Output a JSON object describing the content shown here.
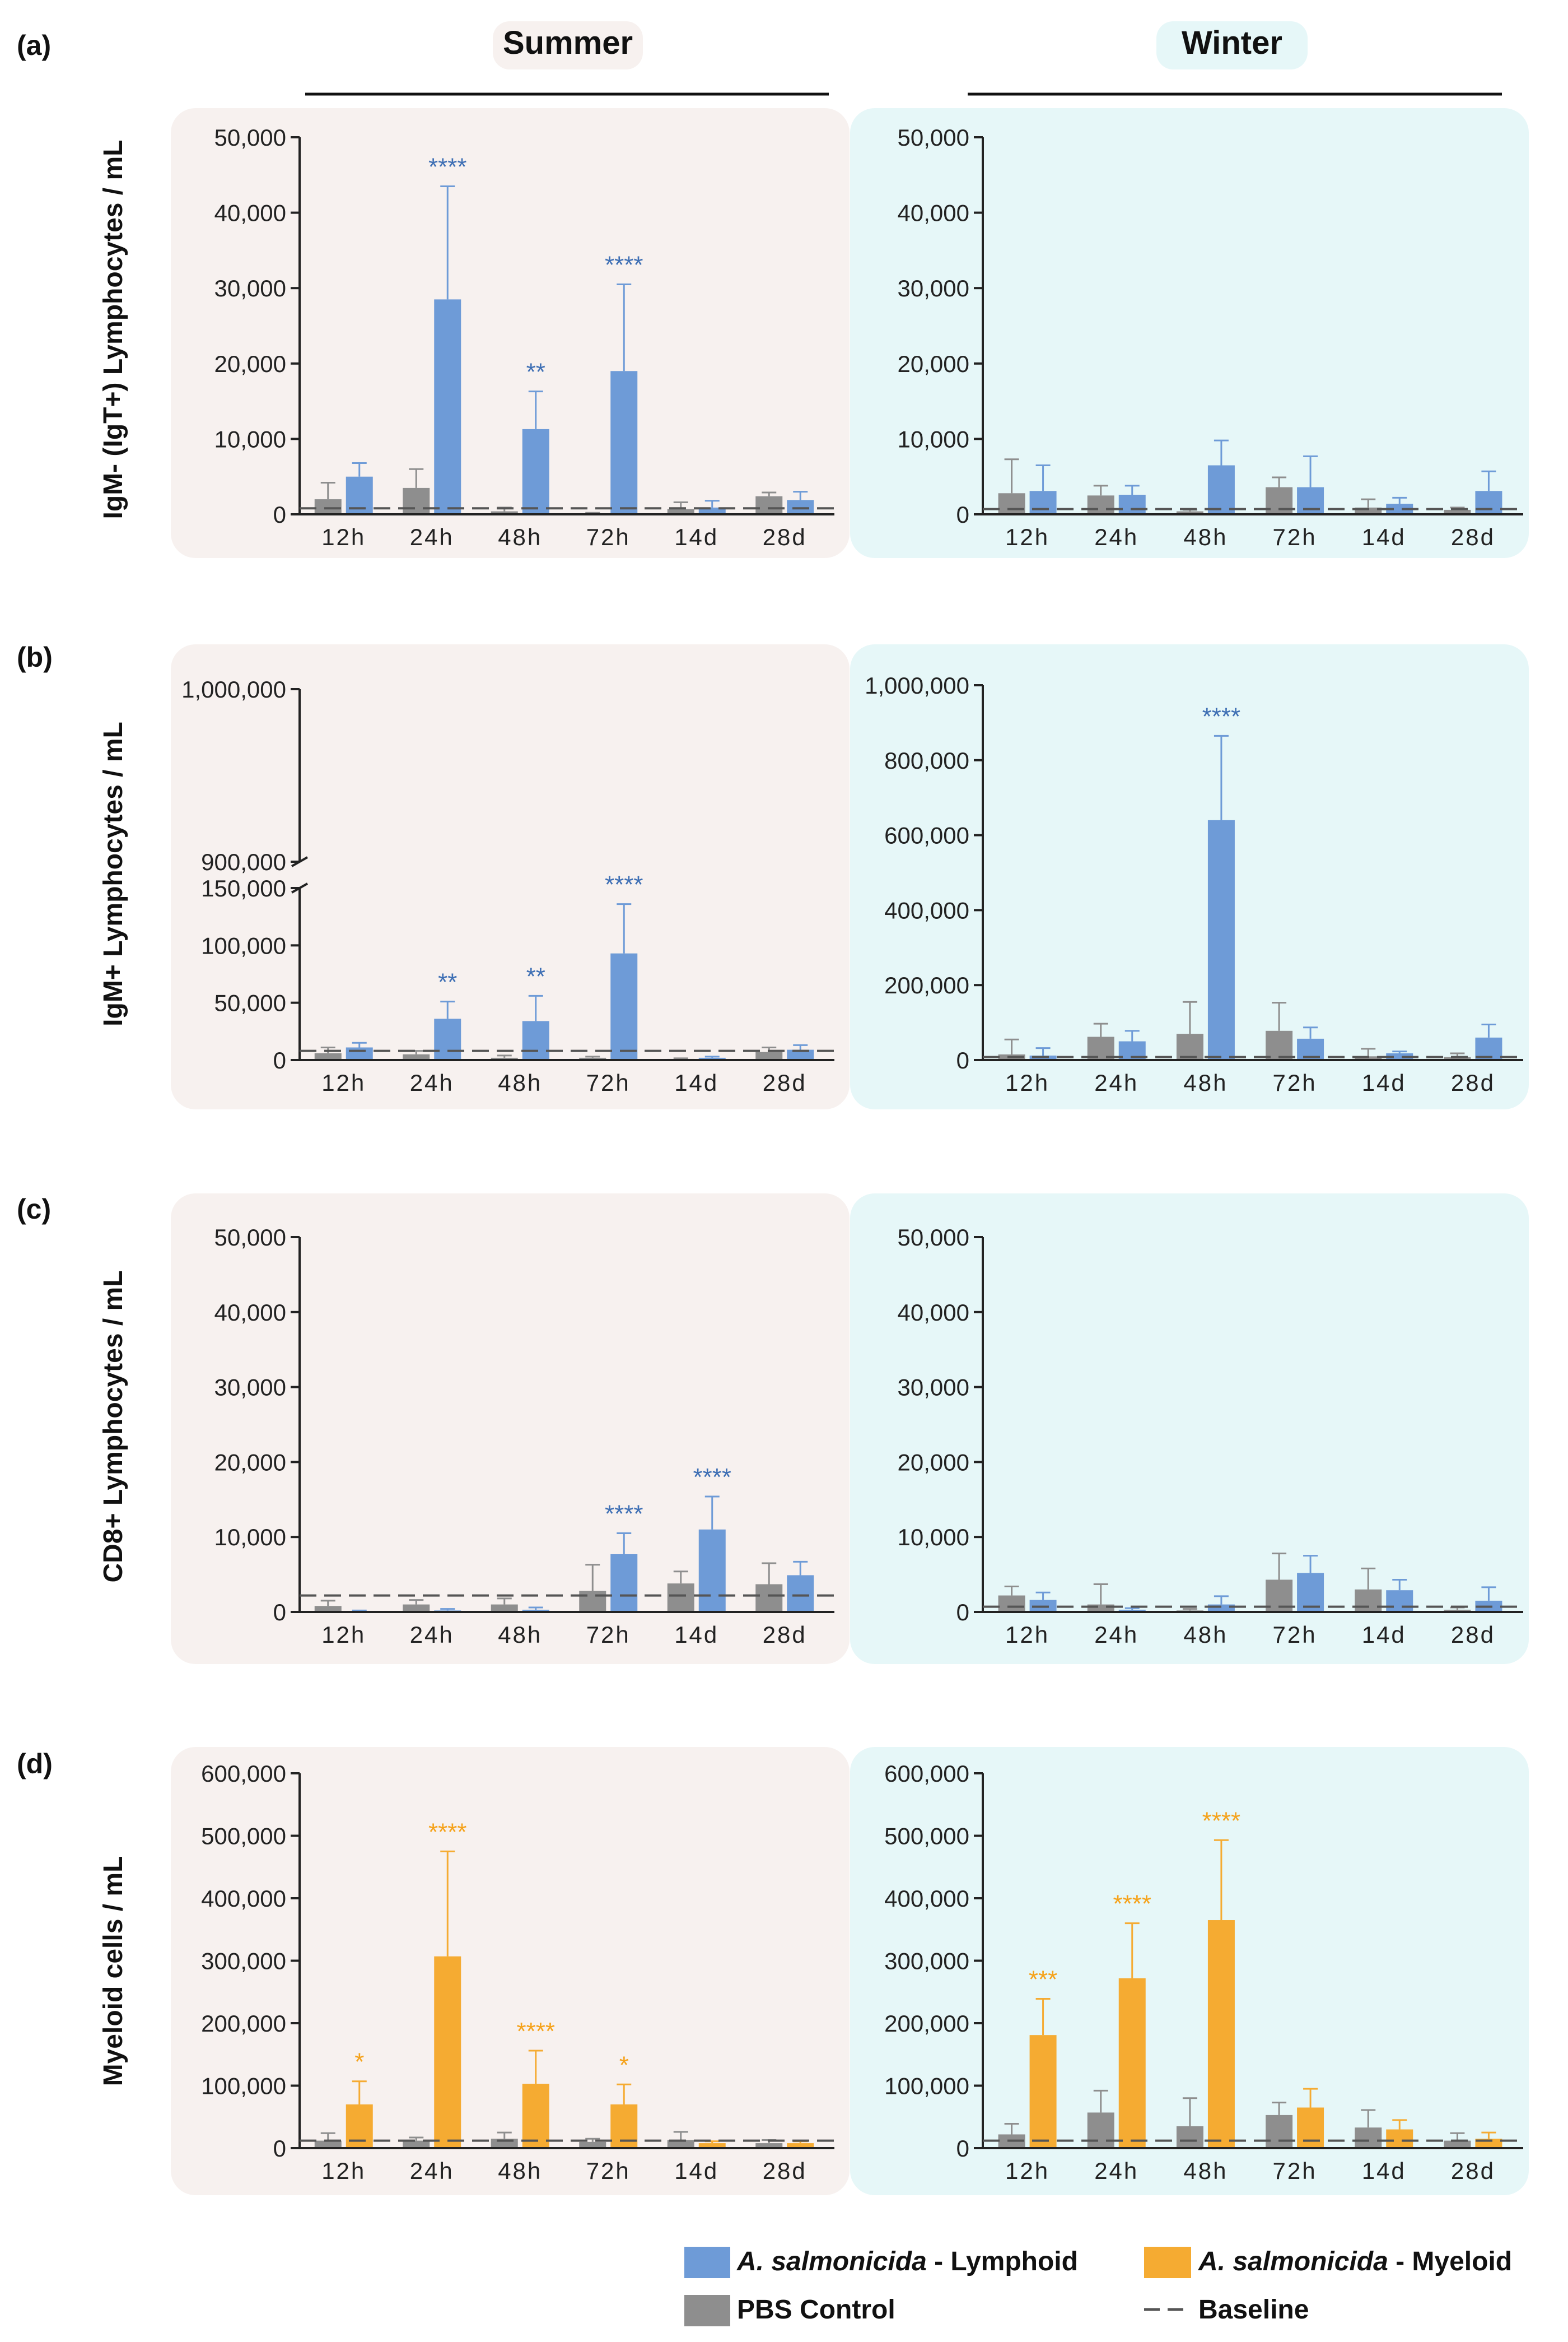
{
  "figure": {
    "season_labels": {
      "summer": "Summer",
      "winter": "Winter"
    },
    "panel_letters": [
      "(a)",
      "(b)",
      "(c)",
      "(d)"
    ],
    "colors": {
      "summer_bg": "#f7f1ef",
      "winter_bg": "#e6f7f8",
      "lymphoid": "#6e9bd7",
      "myeloid": "#f5ab32",
      "control": "#8e8e8e",
      "star_lymphoid": "#3e6fb4",
      "star_myeloid": "#f5a21a",
      "axis": "#222222",
      "baseline": "#555555"
    },
    "legend": {
      "lymphoid_italic": "A. salmonicida",
      "lymphoid_rest": " - Lymphoid",
      "myeloid_italic": "A. salmonicida",
      "myeloid_rest": " - Myeloid",
      "control": "PBS Control",
      "baseline": "Baseline"
    }
  },
  "chart_data": [
    {
      "id": "a-summer",
      "type": "bar",
      "panel": "(a)",
      "season": "Summer",
      "ylabel": "IgM- (IgT+) Lymphocytes / mL",
      "categories": [
        "12h",
        "24h",
        "48h",
        "72h",
        "14d",
        "28d"
      ],
      "ylim": [
        0,
        50000
      ],
      "ticks": [
        0,
        10000,
        20000,
        30000,
        40000,
        50000
      ],
      "tick_labels": [
        "0",
        "10,000",
        "20,000",
        "30,000",
        "40,000",
        "50,000"
      ],
      "baseline": 800,
      "series": [
        {
          "name": "PBS Control",
          "values": [
            2000,
            3500,
            400,
            100,
            700,
            2400
          ],
          "errors": [
            2200,
            2500,
            500,
            100,
            900,
            500
          ]
        },
        {
          "name": "A. salmonicida - Lymphoid",
          "values": [
            5000,
            28500,
            11300,
            19000,
            900,
            1900
          ],
          "errors": [
            1800,
            15000,
            5000,
            11500,
            900,
            1100
          ]
        }
      ],
      "significance": [
        "",
        "****",
        "**",
        "****",
        "",
        ""
      ]
    },
    {
      "id": "a-winter",
      "type": "bar",
      "panel": "(a)",
      "season": "Winter",
      "ylabel": "IgM- (IgT+) Lymphocytes / mL",
      "categories": [
        "12h",
        "24h",
        "48h",
        "72h",
        "14d",
        "28d"
      ],
      "ylim": [
        0,
        50000
      ],
      "ticks": [
        0,
        10000,
        20000,
        30000,
        40000,
        50000
      ],
      "tick_labels": [
        "0",
        "10,000",
        "20,000",
        "30,000",
        "40,000",
        "50,000"
      ],
      "baseline": 700,
      "series": [
        {
          "name": "PBS Control",
          "values": [
            2800,
            2500,
            400,
            3600,
            900,
            600
          ],
          "errors": [
            4500,
            1300,
            200,
            1300,
            1100,
            300
          ]
        },
        {
          "name": "A. salmonicida - Lymphoid",
          "values": [
            3100,
            2600,
            6500,
            3600,
            1400,
            3100
          ],
          "errors": [
            3400,
            1200,
            3300,
            4100,
            800,
            2600
          ]
        }
      ],
      "significance": [
        "",
        "",
        "",
        "",
        "",
        ""
      ]
    },
    {
      "id": "b-summer",
      "type": "bar",
      "panel": "(b)",
      "season": "Summer",
      "ylabel": "IgM+ Lymphocytes / mL",
      "categories": [
        "12h",
        "24h",
        "48h",
        "72h",
        "14d",
        "28d"
      ],
      "ylim": [
        0,
        150000
      ],
      "axis_break": {
        "lower_max": 150000,
        "upper_min": 900000,
        "upper_max": 1000000
      },
      "ticks": [
        0,
        50000,
        100000,
        150000
      ],
      "tick_labels": [
        "0",
        "50,000",
        "100,000",
        "150,000"
      ],
      "upper_tick_labels": [
        "900,000",
        "1,000,000"
      ],
      "baseline": 8000,
      "series": [
        {
          "name": "PBS Control",
          "values": [
            6000,
            5000,
            2000,
            2000,
            1000,
            7000
          ],
          "errors": [
            5000,
            3000,
            2000,
            1000,
            500,
            4000
          ]
        },
        {
          "name": "A. salmonicida - Lymphoid",
          "values": [
            11000,
            36000,
            34000,
            93000,
            2000,
            9000
          ],
          "errors": [
            4000,
            15000,
            22000,
            43000,
            1000,
            4000
          ]
        }
      ],
      "significance": [
        "",
        "**",
        "**",
        "****",
        "",
        ""
      ]
    },
    {
      "id": "b-winter",
      "type": "bar",
      "panel": "(b)",
      "season": "Winter",
      "ylabel": "IgM+ Lymphocytes / mL",
      "categories": [
        "12h",
        "24h",
        "48h",
        "72h",
        "14d",
        "28d"
      ],
      "ylim": [
        0,
        1000000
      ],
      "ticks": [
        0,
        200000,
        400000,
        600000,
        800000,
        1000000
      ],
      "tick_labels": [
        "0",
        "200,000",
        "400,000",
        "600,000",
        "800,000",
        "1,000,000"
      ],
      "baseline": 8000,
      "series": [
        {
          "name": "PBS Control",
          "values": [
            15000,
            62000,
            70000,
            78000,
            10000,
            8000
          ],
          "errors": [
            40000,
            35000,
            85000,
            75000,
            20000,
            10000
          ]
        },
        {
          "name": "A. salmonicida - Lymphoid",
          "values": [
            12000,
            50000,
            640000,
            57000,
            18000,
            60000
          ],
          "errors": [
            20000,
            28000,
            225000,
            30000,
            5000,
            35000
          ]
        }
      ],
      "significance": [
        "",
        "",
        "****",
        "",
        "",
        ""
      ]
    },
    {
      "id": "c-summer",
      "type": "bar",
      "panel": "(c)",
      "season": "Summer",
      "ylabel": "CD8+ Lymphocytes / mL",
      "categories": [
        "12h",
        "24h",
        "48h",
        "72h",
        "14d",
        "28d"
      ],
      "ylim": [
        0,
        50000
      ],
      "ticks": [
        0,
        10000,
        20000,
        30000,
        40000,
        50000
      ],
      "tick_labels": [
        "0",
        "10,000",
        "20,000",
        "30,000",
        "40,000",
        "50,000"
      ],
      "baseline": 2200,
      "series": [
        {
          "name": "PBS Control",
          "values": [
            800,
            1000,
            1000,
            2800,
            3800,
            3700
          ],
          "errors": [
            700,
            600,
            800,
            3500,
            1600,
            2800
          ]
        },
        {
          "name": "A. salmonicida - Lymphoid",
          "values": [
            100,
            200,
            300,
            7700,
            11000,
            4900
          ],
          "errors": [
            100,
            200,
            300,
            2800,
            4400,
            1800
          ]
        }
      ],
      "significance": [
        "",
        "",
        "",
        "****",
        "****",
        ""
      ]
    },
    {
      "id": "c-winter",
      "type": "bar",
      "panel": "(c)",
      "season": "Winter",
      "ylabel": "CD8+ Lymphocytes / mL",
      "categories": [
        "12h",
        "24h",
        "48h",
        "72h",
        "14d",
        "28d"
      ],
      "ylim": [
        0,
        50000
      ],
      "ticks": [
        0,
        10000,
        20000,
        30000,
        40000,
        50000
      ],
      "tick_labels": [
        "0",
        "10,000",
        "20,000",
        "30,000",
        "40,000",
        "50,000"
      ],
      "baseline": 700,
      "series": [
        {
          "name": "PBS Control",
          "values": [
            2200,
            1000,
            200,
            4300,
            3000,
            300
          ],
          "errors": [
            1200,
            2700,
            200,
            3500,
            2800,
            300
          ]
        },
        {
          "name": "A. salmonicida - Lymphoid",
          "values": [
            1600,
            300,
            1000,
            5200,
            2900,
            1500
          ],
          "errors": [
            1000,
            200,
            1100,
            2300,
            1400,
            1800
          ]
        }
      ],
      "significance": [
        "",
        "",
        "",
        "",
        "",
        ""
      ]
    },
    {
      "id": "d-summer",
      "type": "bar",
      "panel": "(d)",
      "season": "Summer",
      "ylabel": "Myeloid cells / mL",
      "categories": [
        "12h",
        "24h",
        "48h",
        "72h",
        "14d",
        "28d"
      ],
      "ylim": [
        0,
        600000
      ],
      "ticks": [
        0,
        100000,
        200000,
        300000,
        400000,
        500000,
        600000
      ],
      "tick_labels": [
        "0",
        "100,000",
        "200,000",
        "300,000",
        "400,000",
        "500,000",
        "600,000"
      ],
      "baseline": 12000,
      "series": [
        {
          "name": "PBS Control",
          "values": [
            12000,
            12000,
            15000,
            10000,
            13000,
            8000
          ],
          "errors": [
            12000,
            5000,
            10000,
            5000,
            13000,
            5000
          ]
        },
        {
          "name": "A. salmonicida - Myeloid",
          "values": [
            70000,
            307000,
            103000,
            70000,
            8000,
            8000
          ],
          "errors": [
            37000,
            168000,
            53000,
            32000,
            3000,
            3000
          ]
        }
      ],
      "significance": [
        "*",
        "****",
        "****",
        "*",
        "",
        ""
      ]
    },
    {
      "id": "d-winter",
      "type": "bar",
      "panel": "(d)",
      "season": "Winter",
      "ylabel": "Myeloid cells / mL",
      "categories": [
        "12h",
        "24h",
        "48h",
        "72h",
        "14d",
        "28d"
      ],
      "ylim": [
        0,
        600000
      ],
      "ticks": [
        0,
        100000,
        200000,
        300000,
        400000,
        500000,
        600000
      ],
      "tick_labels": [
        "0",
        "100,000",
        "200,000",
        "300,000",
        "400,000",
        "500,000",
        "600,000"
      ],
      "baseline": 12000,
      "series": [
        {
          "name": "PBS Control",
          "values": [
            22000,
            57000,
            35000,
            53000,
            33000,
            12000
          ],
          "errors": [
            17000,
            35000,
            45000,
            20000,
            28000,
            12000
          ]
        },
        {
          "name": "A. salmonicida - Myeloid",
          "values": [
            181000,
            272000,
            365000,
            65000,
            30000,
            15000
          ],
          "errors": [
            58000,
            88000,
            128000,
            30000,
            15000,
            10000
          ]
        }
      ],
      "significance": [
        "***",
        "****",
        "****",
        "",
        "",
        ""
      ]
    }
  ]
}
